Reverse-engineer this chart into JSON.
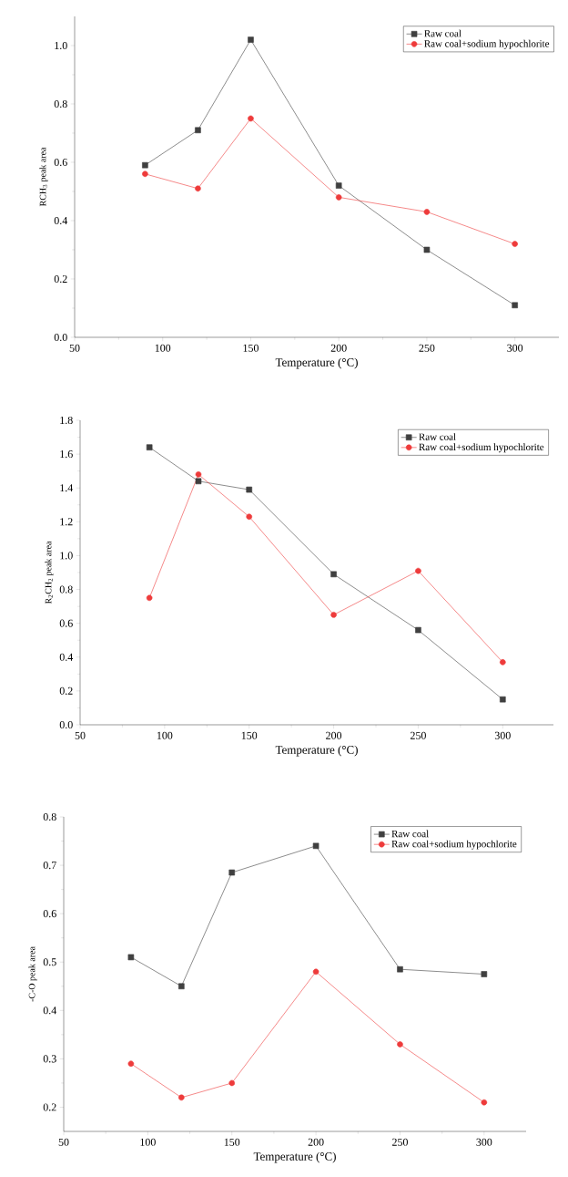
{
  "chart_data": [
    {
      "type": "line",
      "xlabel": "Temperature (°C)",
      "ylabel": "RCH$_{3}$ peak area",
      "x": [
        90,
        120,
        150,
        200,
        250,
        300
      ],
      "series": [
        {
          "name": "Raw coal",
          "color": "#404040",
          "marker": "square",
          "values": [
            0.59,
            0.71,
            1.02,
            0.52,
            0.3,
            0.11
          ]
        },
        {
          "name": "Raw coal+sodium hypochlorite",
          "color": "#ee3b3b",
          "marker": "circle",
          "values": [
            0.56,
            0.51,
            0.75,
            0.48,
            0.43,
            0.32
          ]
        }
      ],
      "xlim": [
        50,
        325
      ],
      "ylim": [
        0,
        1.1
      ],
      "xticks": [
        50,
        100,
        150,
        200,
        250,
        300
      ],
      "yticks": [
        {
          "value": 0,
          "label": "0.0"
        },
        {
          "value": 0.2,
          "label": "0.2"
        },
        {
          "value": 0.4,
          "label": "0.4"
        },
        {
          "value": 0.6,
          "label": "0.6"
        },
        {
          "value": 0.8,
          "label": "0.8"
        },
        {
          "value": 1,
          "label": "1.0"
        }
      ],
      "legend": "top right",
      "grid": false,
      "line_style": "solid"
    },
    {
      "type": "line",
      "xlabel": "Temperature (°C)",
      "ylabel": "R$_{2}$CH$_{2}$ peak area",
      "x": [
        91,
        120,
        150,
        200,
        250,
        300
      ],
      "series": [
        {
          "name": "Raw coal",
          "color": "#404040",
          "marker": "square",
          "values": [
            1.64,
            1.44,
            1.39,
            0.89,
            0.56,
            0.15
          ]
        },
        {
          "name": "Raw coal+sodium hypochlorite",
          "color": "#ee3b3b",
          "marker": "circle",
          "values": [
            0.75,
            1.48,
            1.23,
            0.65,
            0.91,
            0.37
          ]
        }
      ],
      "xlim": [
        50,
        330
      ],
      "ylim": [
        0,
        1.8
      ],
      "xticks": [
        50,
        100,
        150,
        200,
        250,
        300
      ],
      "yticks": [
        {
          "value": 0,
          "label": "0.0"
        },
        {
          "value": 0.2,
          "label": "0.2"
        },
        {
          "value": 0.4,
          "label": "0.4"
        },
        {
          "value": 0.6,
          "label": "0.6"
        },
        {
          "value": 0.8,
          "label": "0.8"
        },
        {
          "value": 1,
          "label": "1.0"
        },
        {
          "value": 1.2,
          "label": "1.2"
        },
        {
          "value": 1.4,
          "label": "1.4"
        },
        {
          "value": 1.6,
          "label": "1.6"
        },
        {
          "value": 1.8,
          "label": "1.8"
        }
      ],
      "legend": "top right",
      "grid": false,
      "line_style": "solid"
    },
    {
      "type": "line",
      "xlabel": "Temperature (°C)",
      "ylabel": "-C-O peak area",
      "x": [
        90,
        120,
        150,
        200,
        250,
        300
      ],
      "series": [
        {
          "name": "Raw coal",
          "color": "#404040",
          "marker": "square",
          "values": [
            0.51,
            0.45,
            0.685,
            0.74,
            0.485,
            0.475
          ]
        },
        {
          "name": "Raw coal+sodium hypochlorite",
          "color": "#ee3b3b",
          "marker": "circle",
          "values": [
            0.29,
            0.22,
            0.25,
            0.48,
            0.33,
            0.21
          ]
        }
      ],
      "xlim": [
        50,
        325
      ],
      "ylim": [
        0.15,
        0.8
      ],
      "xticks": [
        50,
        100,
        150,
        200,
        250,
        300
      ],
      "yticks": [
        {
          "value": 0.2,
          "label": "0.2"
        },
        {
          "value": 0.3,
          "label": "0.3"
        },
        {
          "value": 0.4,
          "label": "0.4"
        },
        {
          "value": 0.5,
          "label": "0.5"
        },
        {
          "value": 0.6,
          "label": "0.6"
        },
        {
          "value": 0.7,
          "label": "0.7"
        },
        {
          "value": 0.8,
          "label": "0.8"
        }
      ],
      "legend": "top right",
      "grid": false,
      "line_style": "solid"
    }
  ]
}
